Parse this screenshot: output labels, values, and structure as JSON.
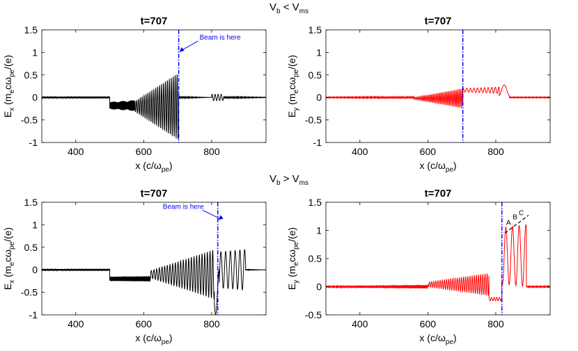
{
  "headers": {
    "top": {
      "base": "V",
      "sub1": "b",
      "rel": " < V",
      "sub2": "ms"
    },
    "bottom": {
      "base": "V",
      "sub1": "b",
      "rel": " > V",
      "sub2": "ms"
    }
  },
  "chart_data": [
    {
      "id": "p1",
      "type": "line",
      "title": "t=707",
      "xlim": [
        300,
        960
      ],
      "ylim": [
        -1,
        1.5
      ],
      "xticks": [
        "400",
        "600",
        "800"
      ],
      "xtick_values": [
        400,
        600,
        800
      ],
      "yticks": [
        "-1",
        "-0.5",
        "0",
        "0.5",
        "1",
        "1.5"
      ],
      "ytick_values": [
        -1,
        -0.5,
        0,
        0.5,
        1,
        1.5
      ],
      "xlabel": "x (c/ω_pe)",
      "ylabel": "E_x (m_e c ω_pe/(e)",
      "xlabel_parts": {
        "main": "x (c/ω",
        "sub": "pe",
        "end": ")"
      },
      "ylabel_parts": {
        "a": "E",
        "a_sub": "x",
        "b": " (m",
        "b_sub": "e",
        "c": "cω",
        "c_sub": "pe",
        "d": "/(e)"
      },
      "color": "#000000",
      "beam_x": 703,
      "annotation": {
        "text": "Beam is here",
        "x": 703,
        "y": 1.1
      },
      "peaks": [],
      "series": [
        {
          "name": "Ex",
          "segments": [
            {
              "x0": 300,
              "x1": 500,
              "amp": [
                0.02,
                0.02
              ],
              "k": 4.0,
              "offset": 0.0
            },
            {
              "x0": 500,
              "x1": 575,
              "amp": [
                0.08,
                0.12
              ],
              "k": 3.2,
              "offset": -0.18
            },
            {
              "x0": 575,
              "x1": 703,
              "amp": [
                0.12,
                0.75
              ],
              "k": 1.1,
              "offset": -0.2
            },
            {
              "x0": 703,
              "x1": 800,
              "amp": [
                0.02,
                0.0
              ],
              "k": 3.0,
              "offset": 0.0
            },
            {
              "x0": 800,
              "x1": 835,
              "amp": [
                0.07,
                0.07
              ],
              "k": 0.7,
              "offset": 0.0
            },
            {
              "x0": 835,
              "x1": 960,
              "amp": [
                0.02,
                0.005
              ],
              "k": 3.0,
              "offset": 0.0
            }
          ]
        }
      ]
    },
    {
      "id": "p2",
      "type": "line",
      "title": "t=707",
      "xlim": [
        300,
        960
      ],
      "ylim": [
        -1,
        1.5
      ],
      "xticks": [
        "400",
        "600",
        "800"
      ],
      "xtick_values": [
        400,
        600,
        800
      ],
      "yticks": [
        "-1",
        "-0.5",
        "0",
        "0.5",
        "1",
        "1.5"
      ],
      "ytick_values": [
        -1,
        -0.5,
        0,
        0.5,
        1,
        1.5
      ],
      "xlabel": "x (c/ω_pe)",
      "ylabel": "E_y (m_e c ω_pe/(e)",
      "xlabel_parts": {
        "main": "x (c/ω",
        "sub": "pe",
        "end": ")"
      },
      "ylabel_parts": {
        "a": "E",
        "a_sub": "y",
        "b": " (m",
        "b_sub": "e",
        "c": "cω",
        "c_sub": "pe",
        "d": "/(e)"
      },
      "color": "#ff0000",
      "beam_x": 703,
      "annotation": null,
      "peaks": [],
      "series": [
        {
          "name": "Ey",
          "segments": [
            {
              "x0": 300,
              "x1": 560,
              "amp": [
                0.01,
                0.02
              ],
              "k": 3.0,
              "offset": 0.0
            },
            {
              "x0": 560,
              "x1": 703,
              "amp": [
                0.02,
                0.22
              ],
              "k": 1.4,
              "offset": -0.02
            },
            {
              "x0": 703,
              "x1": 810,
              "amp": [
                0.04,
                0.07
              ],
              "k": 0.6,
              "offset": 0.16
            },
            {
              "x0": 810,
              "x1": 840,
              "amp": [
                0.12,
                0.12
              ],
              "k": 0.2,
              "offset": 0.16
            },
            {
              "x0": 840,
              "x1": 960,
              "amp": [
                0.01,
                0.01
              ],
              "k": 3.0,
              "offset": 0.0
            }
          ]
        }
      ]
    },
    {
      "id": "p3",
      "type": "line",
      "title": "t=707",
      "xlim": [
        300,
        960
      ],
      "ylim": [
        -1,
        1.5
      ],
      "xticks": [
        "400",
        "600",
        "800"
      ],
      "xtick_values": [
        400,
        600,
        800
      ],
      "yticks": [
        "-1",
        "-0.5",
        "0",
        "0.5",
        "1",
        "1.5"
      ],
      "ytick_values": [
        -1,
        -0.5,
        0,
        0.5,
        1,
        1.5
      ],
      "xlabel": "x (c/ω_pe)",
      "ylabel": "E_x (m_e c ω_pe/(e)",
      "xlabel_parts": {
        "main": "x (c/ω",
        "sub": "pe",
        "end": ")"
      },
      "ylabel_parts": {
        "a": "E",
        "a_sub": "x",
        "b": " (m",
        "b_sub": "e",
        "c": "cω",
        "c_sub": "pe",
        "d": "/(e)"
      },
      "color": "#000000",
      "beam_x": 818,
      "annotation": {
        "text": "Beam is here",
        "x": 818,
        "y": 1.2
      },
      "peaks": [],
      "series": [
        {
          "name": "Ex",
          "segments": [
            {
              "x0": 300,
              "x1": 500,
              "amp": [
                0.02,
                0.02
              ],
              "k": 4.0,
              "offset": 0.0
            },
            {
              "x0": 500,
              "x1": 620,
              "amp": [
                0.05,
                0.06
              ],
              "k": 3.4,
              "offset": -0.2
            },
            {
              "x0": 620,
              "x1": 808,
              "amp": [
                0.08,
                0.55
              ],
              "k": 0.8,
              "offset": -0.1
            },
            {
              "x0": 808,
              "x1": 822,
              "amp": [
                0.5,
                0.5
              ],
              "k": 0.3,
              "offset": -0.5
            },
            {
              "x0": 822,
              "x1": 900,
              "amp": [
                0.4,
                0.45
              ],
              "k": 0.45,
              "offset": 0.0
            },
            {
              "x0": 900,
              "x1": 960,
              "amp": [
                0.01,
                0.0
              ],
              "k": 3.0,
              "offset": 0.0
            }
          ]
        }
      ]
    },
    {
      "id": "p4",
      "type": "line",
      "title": "t=707",
      "xlim": [
        300,
        960
      ],
      "ylim": [
        -0.5,
        1.5
      ],
      "xticks": [
        "400",
        "600",
        "800"
      ],
      "xtick_values": [
        400,
        600,
        800
      ],
      "yticks": [
        "-0.5",
        "0",
        "0.5",
        "1",
        "1.5"
      ],
      "ytick_values": [
        -0.5,
        0,
        0.5,
        1,
        1.5
      ],
      "xlabel": "x (c/ω_pe)",
      "ylabel": "E_y (m_e c ω_pe/(e)",
      "xlabel_parts": {
        "main": "x (c/ω",
        "sub": "pe",
        "end": ")"
      },
      "ylabel_parts": {
        "a": "E",
        "a_sub": "y",
        "b": " (m",
        "b_sub": "e",
        "c": "cω",
        "c_sub": "pe",
        "d": "/(e)"
      },
      "color": "#ff0000",
      "beam_x": 818,
      "annotation": null,
      "peaks": [
        {
          "label": "A",
          "x": 843,
          "y": 1.05
        },
        {
          "label": "B",
          "x": 862,
          "y": 1.15
        },
        {
          "label": "C",
          "x": 880,
          "y": 1.22
        }
      ],
      "series": [
        {
          "name": "Ey",
          "segments": [
            {
              "x0": 300,
              "x1": 600,
              "amp": [
                0.01,
                0.03
              ],
              "k": 3.0,
              "offset": 0.0
            },
            {
              "x0": 600,
              "x1": 780,
              "amp": [
                0.04,
                0.2
              ],
              "k": 1.0,
              "offset": 0.04
            },
            {
              "x0": 780,
              "x1": 818,
              "amp": [
                0.03,
                0.03
              ],
              "k": 0.8,
              "offset": -0.22
            },
            {
              "x0": 818,
              "x1": 890,
              "amp": [
                0.5,
                0.55
              ],
              "k": 0.32,
              "offset": 0.55
            },
            {
              "x0": 890,
              "x1": 960,
              "amp": [
                0.01,
                0.01
              ],
              "k": 3.0,
              "offset": 0.0
            }
          ]
        }
      ]
    }
  ]
}
